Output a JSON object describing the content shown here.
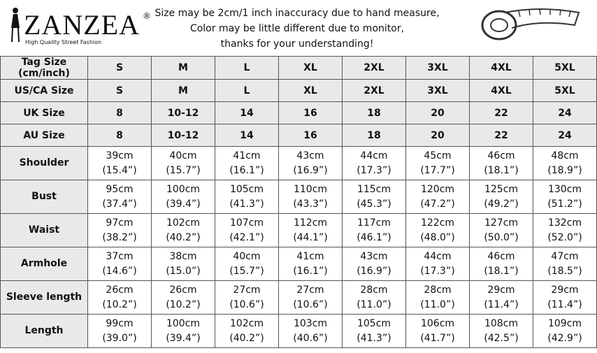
{
  "header": {
    "logo": {
      "brand": "ZANZEA",
      "mark": "®",
      "tagline": "High Quality Street Fashion"
    },
    "notice": [
      "Size may be 2cm/1 inch inaccuracy due to hand measure,",
      "Color may be little different due to monitor,",
      "thanks for your understanding!"
    ]
  },
  "table": {
    "size_rows": [
      {
        "label": [
          "Tag Size",
          "(cm/inch)"
        ],
        "values": [
          "S",
          "M",
          "L",
          "XL",
          "2XL",
          "3XL",
          "4XL",
          "5XL"
        ]
      },
      {
        "label": [
          "US/CA Size"
        ],
        "values": [
          "S",
          "M",
          "L",
          "XL",
          "2XL",
          "3XL",
          "4XL",
          "5XL"
        ]
      },
      {
        "label": [
          "UK Size"
        ],
        "values": [
          "8",
          "10-12",
          "14",
          "16",
          "18",
          "20",
          "22",
          "24"
        ]
      },
      {
        "label": [
          "AU Size"
        ],
        "values": [
          "8",
          "10-12",
          "14",
          "16",
          "18",
          "20",
          "22",
          "24"
        ]
      }
    ],
    "measure_rows": [
      {
        "label": "Shoulder",
        "values": [
          [
            "39cm",
            "(15.4”)"
          ],
          [
            "40cm",
            "(15.7”)"
          ],
          [
            "41cm",
            "(16.1”)"
          ],
          [
            "43cm",
            "(16.9”)"
          ],
          [
            "44cm",
            "(17.3”)"
          ],
          [
            "45cm",
            "(17.7”)"
          ],
          [
            "46cm",
            "(18.1”)"
          ],
          [
            "48cm",
            "(18.9”)"
          ]
        ]
      },
      {
        "label": "Bust",
        "values": [
          [
            "95cm",
            "(37.4”)"
          ],
          [
            "100cm",
            "(39.4”)"
          ],
          [
            "105cm",
            "(41.3”)"
          ],
          [
            "110cm",
            "(43.3”)"
          ],
          [
            "115cm",
            "(45.3”)"
          ],
          [
            "120cm",
            "(47.2”)"
          ],
          [
            "125cm",
            "(49.2”)"
          ],
          [
            "130cm",
            "(51.2”)"
          ]
        ]
      },
      {
        "label": "Waist",
        "values": [
          [
            "97cm",
            "(38.2”)"
          ],
          [
            "102cm",
            "(40.2”)"
          ],
          [
            "107cm",
            "(42.1”)"
          ],
          [
            "112cm",
            "(44.1”)"
          ],
          [
            "117cm",
            "(46.1”)"
          ],
          [
            "122cm",
            "(48.0”)"
          ],
          [
            "127cm",
            "(50.0”)"
          ],
          [
            "132cm",
            "(52.0”)"
          ]
        ]
      },
      {
        "label": "Armhole",
        "values": [
          [
            "37cm",
            "(14.6”)"
          ],
          [
            "38cm",
            "(15.0”)"
          ],
          [
            "40cm",
            "(15.7”)"
          ],
          [
            "41cm",
            "(16.1”)"
          ],
          [
            "43cm",
            "(16.9”)"
          ],
          [
            "44cm",
            "(17.3”)"
          ],
          [
            "46cm",
            "(18.1”)"
          ],
          [
            "47cm",
            "(18.5”)"
          ]
        ]
      },
      {
        "label": "Sleeve length",
        "values": [
          [
            "26cm",
            "(10.2”)"
          ],
          [
            "26cm",
            "(10.2”)"
          ],
          [
            "27cm",
            "(10.6”)"
          ],
          [
            "27cm",
            "(10.6”)"
          ],
          [
            "28cm",
            "(11.0”)"
          ],
          [
            "28cm",
            "(11.0”)"
          ],
          [
            "29cm",
            "(11.4”)"
          ],
          [
            "29cm",
            "(11.4”)"
          ]
        ]
      },
      {
        "label": "Length",
        "values": [
          [
            "99cm",
            "(39.0”)"
          ],
          [
            "100cm",
            "(39.4”)"
          ],
          [
            "102cm",
            "(40.2”)"
          ],
          [
            "103cm",
            "(40.6”)"
          ],
          [
            "105cm",
            "(41.3”)"
          ],
          [
            "106cm",
            "(41.7”)"
          ],
          [
            "108cm",
            "(42.5”)"
          ],
          [
            "109cm",
            "(42.9”)"
          ]
        ]
      }
    ]
  }
}
